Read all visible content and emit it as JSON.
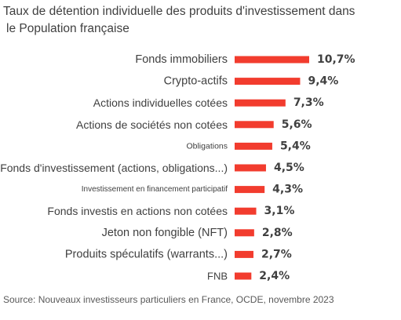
{
  "title": {
    "line1": "Taux de détention individuelle des produits d'investissement dans",
    "line2": "le Population française"
  },
  "chart_data": {
    "type": "bar",
    "orientation": "horizontal",
    "categories": [
      "Fonds immobiliers",
      "Crypto-actifs",
      "Actions individuelles cotées",
      "Actions de sociétés non cotées",
      "Obligations",
      "Fonds d'investissement (actions, obligations...)",
      "Investissement en financement participatif",
      "Fonds investis en actions non cotées",
      "Jeton non fongible (NFT)",
      "Produits spéculatifs (warrants...)",
      "FNB"
    ],
    "values": [
      10.7,
      9.4,
      7.3,
      5.6,
      5.4,
      4.5,
      4.3,
      3.1,
      2.8,
      2.7,
      2.4
    ],
    "value_labels": [
      "10,7%",
      "9,4%",
      "7,3%",
      "5,6%",
      "5,4%",
      "4,5%",
      "4,3%",
      "3,1%",
      "2,8%",
      "2,7%",
      "2,4%"
    ],
    "bar_color": "#f23c2e",
    "grid": false,
    "legend": "none"
  },
  "source": "Source: Nouveaux investisseurs particuliers en France, OCDE, novembre 2023"
}
